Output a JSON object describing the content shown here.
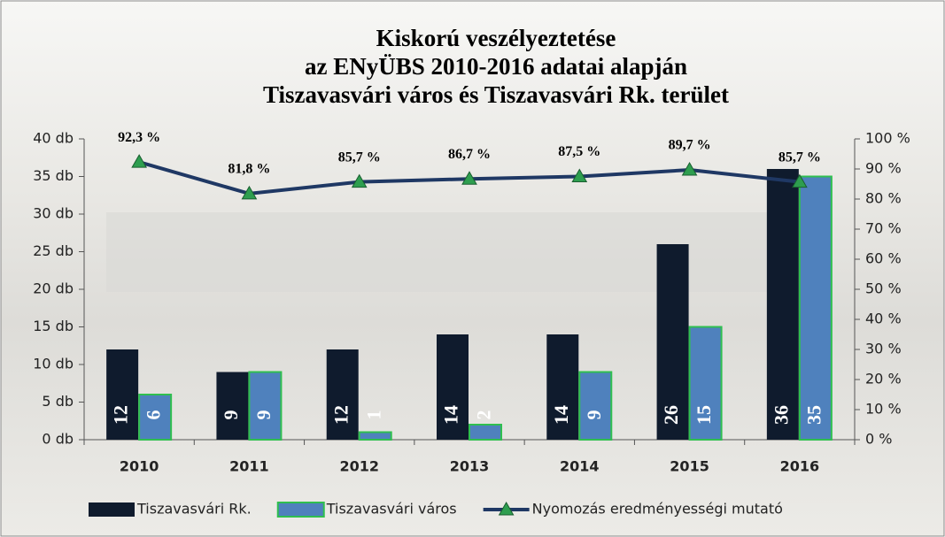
{
  "chart_data": {
    "type": "bar",
    "title": [
      "Kiskorú veszélyeztetése",
      "az ENyÜBS  2010-2016 adatai alapján",
      "Tiszavasvári város és Tiszavasvári Rk. terület"
    ],
    "categories": [
      "2010",
      "2011",
      "2012",
      "2013",
      "2014",
      "2015",
      "2016"
    ],
    "series": [
      {
        "name": "Tiszavasvári Rk.",
        "type": "bar",
        "color": "#0f1b2d",
        "values": [
          12,
          9,
          12,
          14,
          14,
          26,
          36
        ]
      },
      {
        "name": "Tiszavasvári város",
        "type": "bar",
        "color": "#4f81bd",
        "edge": "#2fbf4f",
        "values": [
          6,
          9,
          1,
          2,
          9,
          15,
          35
        ]
      },
      {
        "name": "Nyomozás eredményességi mutató",
        "type": "line",
        "axis": "y2",
        "color": "#1f3864",
        "marker_color": "#2e9e4f",
        "values": [
          92.3,
          81.8,
          85.7,
          86.7,
          87.5,
          89.7,
          85.7
        ],
        "value_labels": [
          "92,3 %",
          "81,8 %",
          "85,7 %",
          "86,7 %",
          "87,5 %",
          "89,7 %",
          "85,7 %"
        ]
      }
    ],
    "ylim": [
      0,
      40
    ],
    "yticks": [
      {
        "value": 0,
        "label": "0 db"
      },
      {
        "value": 5,
        "label": "5 db"
      },
      {
        "value": 10,
        "label": "10 db"
      },
      {
        "value": 15,
        "label": "15 db"
      },
      {
        "value": 20,
        "label": "20 db"
      },
      {
        "value": 25,
        "label": "25 db"
      },
      {
        "value": 30,
        "label": "30 db"
      },
      {
        "value": 35,
        "label": "35 db"
      },
      {
        "value": 40,
        "label": "40 db"
      }
    ],
    "y2lim": [
      0,
      100
    ],
    "y2ticks": [
      {
        "value": 0,
        "label": "0 %"
      },
      {
        "value": 10,
        "label": "10 %"
      },
      {
        "value": 20,
        "label": "20 %"
      },
      {
        "value": 30,
        "label": "30 %"
      },
      {
        "value": 40,
        "label": "40 %"
      },
      {
        "value": 50,
        "label": "50 %"
      },
      {
        "value": 60,
        "label": "60 %"
      },
      {
        "value": 70,
        "label": "70 %"
      },
      {
        "value": 80,
        "label": "80 %"
      },
      {
        "value": 90,
        "label": "90 %"
      },
      {
        "value": 100,
        "label": "100 %"
      }
    ],
    "legend": "bottom"
  }
}
